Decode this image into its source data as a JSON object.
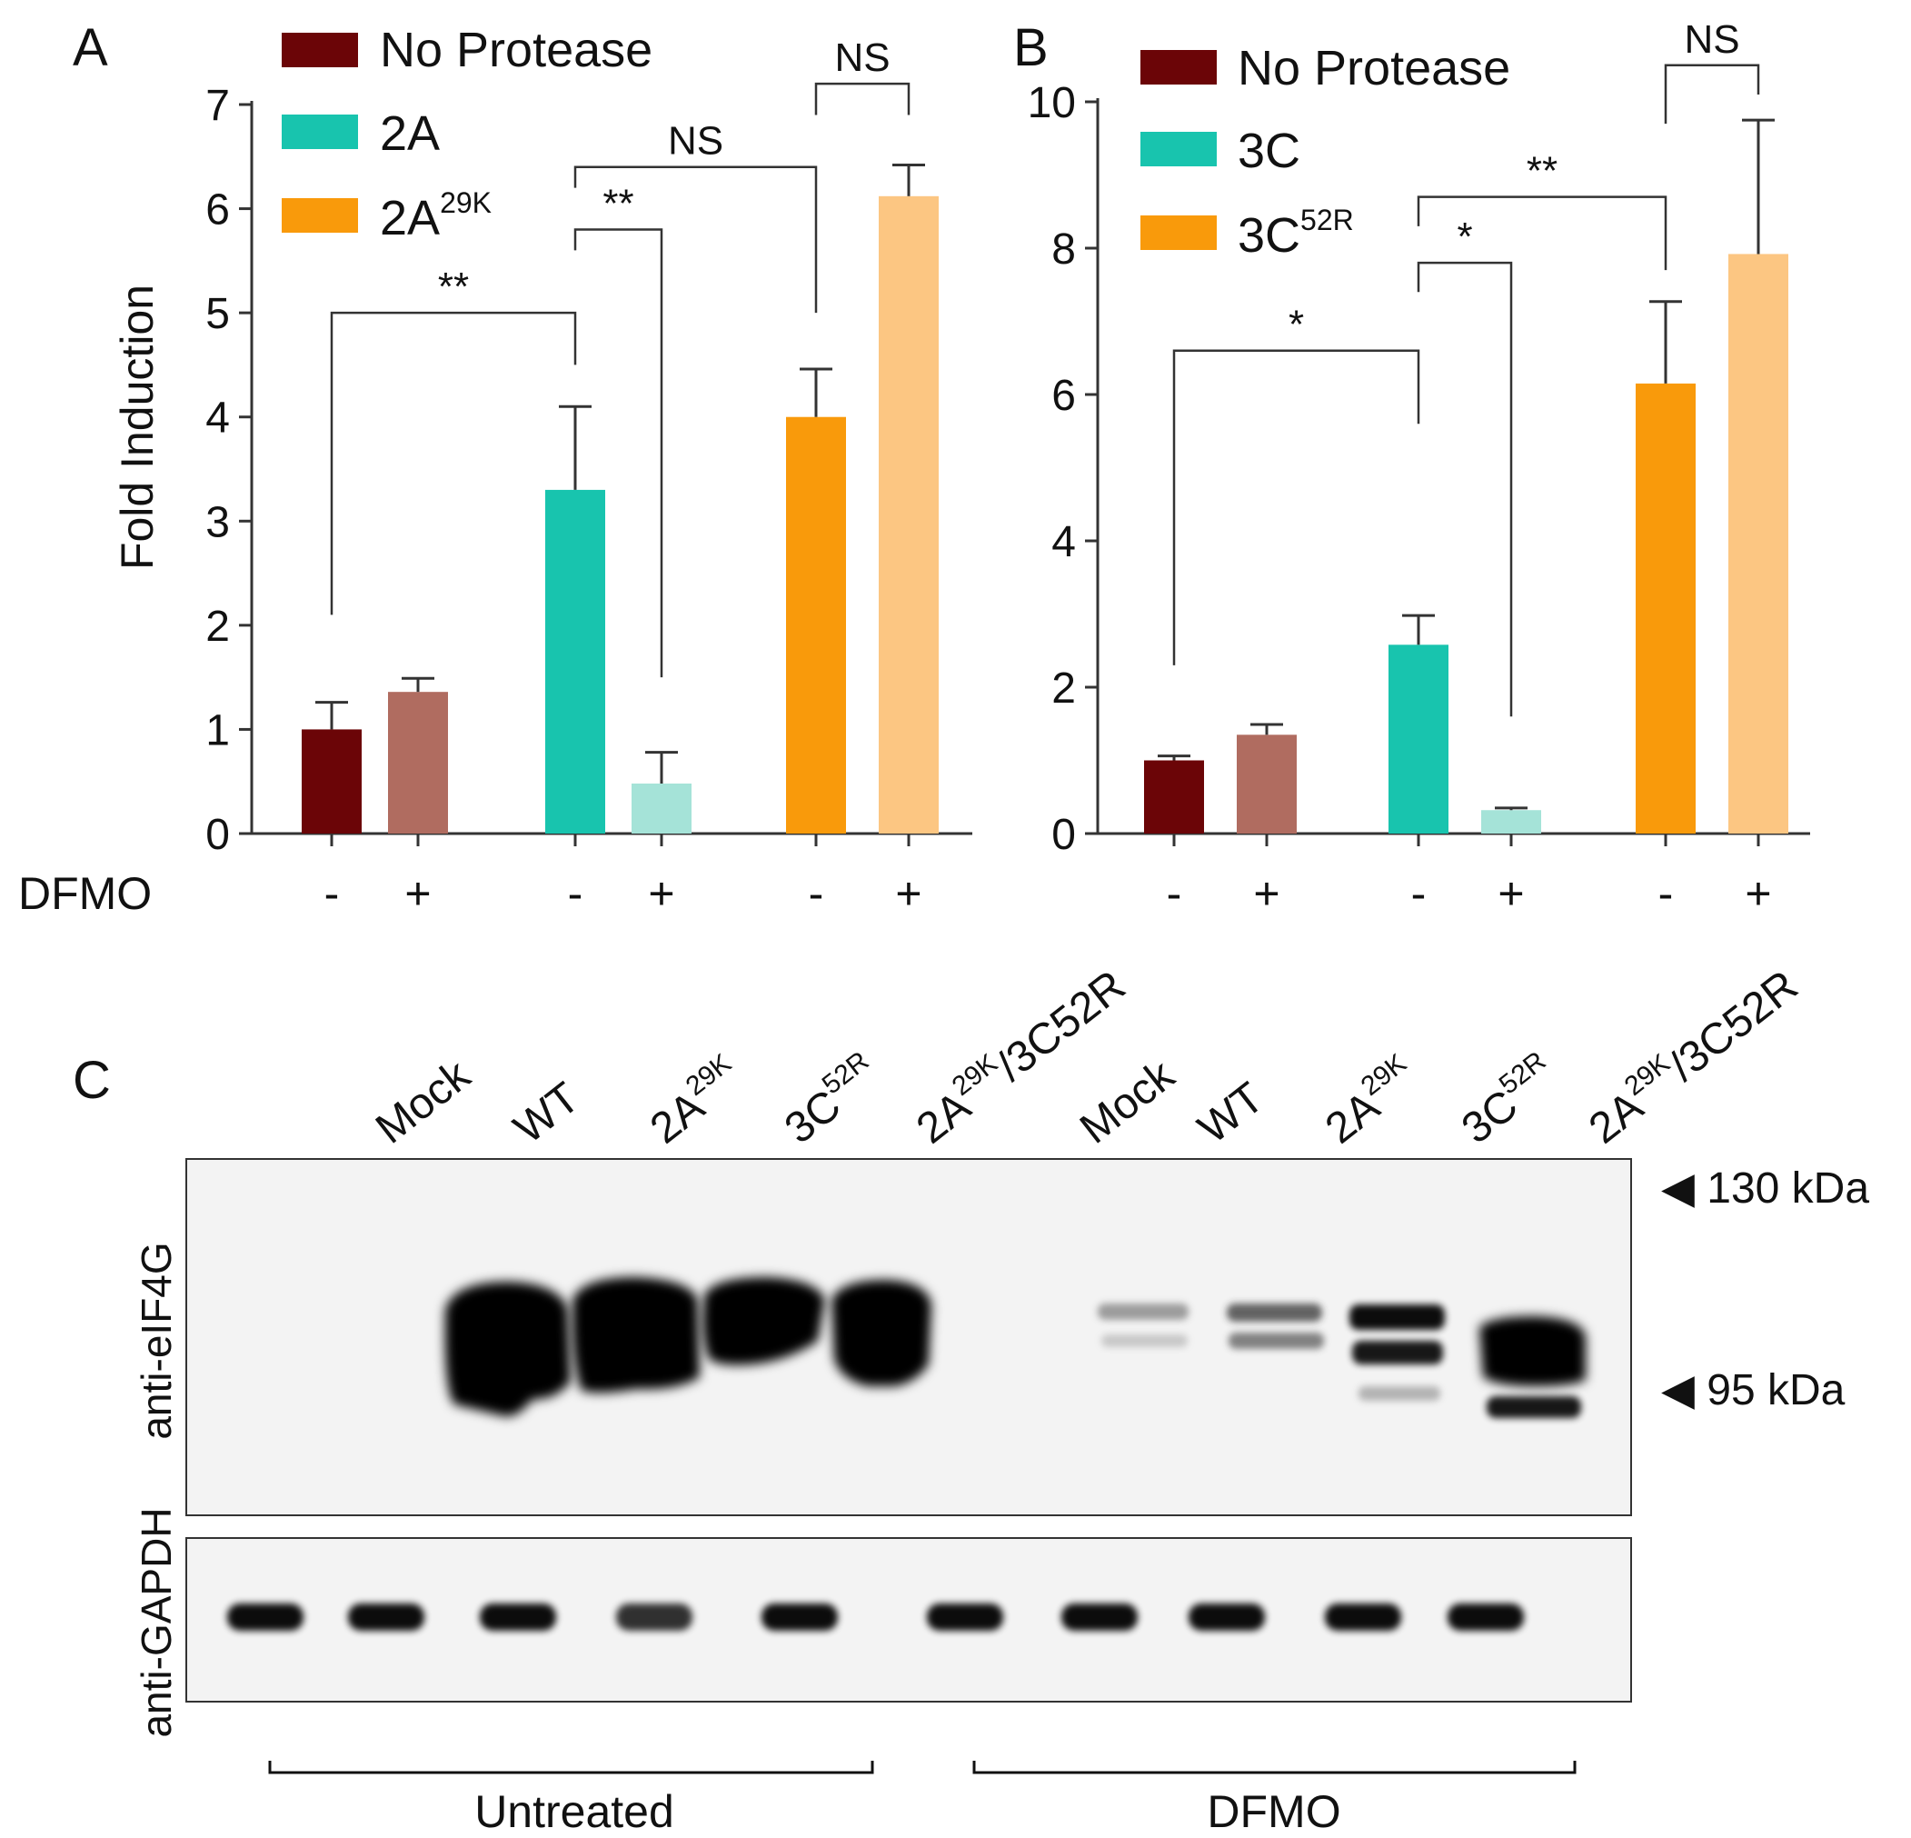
{
  "chart_data": [
    {
      "id": "A",
      "type": "bar",
      "panel_label": "A",
      "ylabel": "Fold Induction",
      "ylim": [
        0,
        7
      ],
      "yticks": [
        "0",
        "1",
        "2",
        "3",
        "4",
        "5",
        "6",
        "7"
      ],
      "xlabel": "DFMO",
      "legend_position": "top-left",
      "legend": [
        {
          "label": "No Protease",
          "sup": "",
          "color": "#6b0507"
        },
        {
          "label": "2A",
          "sup": "",
          "color": "#18c4ae"
        },
        {
          "label": "2A",
          "sup": "29K",
          "color": "#f99a0b"
        }
      ],
      "bars": [
        {
          "group": "No Protease",
          "dfmo": "-",
          "value": 1.0,
          "error": 0.26,
          "color": "#6b0507"
        },
        {
          "group": "No Protease",
          "dfmo": "+",
          "value": 1.36,
          "error": 0.13,
          "color": "#b06c60"
        },
        {
          "group": "2A",
          "dfmo": "-",
          "value": 3.3,
          "error": 0.8,
          "color": "#18c4ae"
        },
        {
          "group": "2A",
          "dfmo": "+",
          "value": 0.48,
          "error": 0.3,
          "color": "#a5e3d8"
        },
        {
          "group": "2A29K",
          "dfmo": "-",
          "value": 4.0,
          "error": 0.46,
          "color": "#f99a0b"
        },
        {
          "group": "2A29K",
          "dfmo": "+",
          "value": 6.12,
          "error": 0.3,
          "color": "#fcc682"
        }
      ],
      "significance": [
        {
          "from": 0,
          "to": 2,
          "label": "**",
          "y": 5.0,
          "drop_from": 2.1,
          "drop_to": 4.5
        },
        {
          "from": 2,
          "to": 3,
          "label": "**",
          "y": 5.8,
          "drop_from": 5.6,
          "drop_to": 1.5
        },
        {
          "from": 2,
          "to": 4,
          "label": "NS",
          "y": 6.4,
          "drop_from": 6.2,
          "drop_to": 5.0
        },
        {
          "from": 4,
          "to": 5,
          "label": "NS",
          "y": 7.2,
          "drop_from": 6.9,
          "drop_to": 6.9
        }
      ]
    },
    {
      "id": "B",
      "type": "bar",
      "panel_label": "B",
      "ylabel": "",
      "ylim": [
        0,
        10
      ],
      "yticks": [
        "0",
        "2",
        "4",
        "6",
        "8",
        "10"
      ],
      "xlabel": "",
      "legend_position": "top-left",
      "legend": [
        {
          "label": "No Protease",
          "sup": "",
          "color": "#6b0507"
        },
        {
          "label": "3C",
          "sup": "",
          "color": "#18c4ae"
        },
        {
          "label": "3C",
          "sup": "52R",
          "color": "#f99a0b"
        }
      ],
      "bars": [
        {
          "group": "No Protease",
          "dfmo": "-",
          "value": 1.0,
          "error": 0.06,
          "color": "#6b0507"
        },
        {
          "group": "No Protease",
          "dfmo": "+",
          "value": 1.35,
          "error": 0.14,
          "color": "#b06c60"
        },
        {
          "group": "3C",
          "dfmo": "-",
          "value": 2.58,
          "error": 0.4,
          "color": "#18c4ae"
        },
        {
          "group": "3C",
          "dfmo": "+",
          "value": 0.32,
          "error": 0.03,
          "color": "#a5e3d8"
        },
        {
          "group": "3C52R",
          "dfmo": "-",
          "value": 6.15,
          "error": 1.12,
          "color": "#f99a0b"
        },
        {
          "group": "3C52R",
          "dfmo": "+",
          "value": 7.92,
          "error": 1.83,
          "color": "#fcc682"
        }
      ],
      "significance": [
        {
          "from": 0,
          "to": 2,
          "label": "*",
          "y": 6.6,
          "drop_from": 2.3,
          "drop_to": 5.6
        },
        {
          "from": 2,
          "to": 3,
          "label": "*",
          "y": 7.8,
          "drop_from": 7.4,
          "drop_to": 1.6
        },
        {
          "from": 2,
          "to": 4,
          "label": "**",
          "y": 8.7,
          "drop_from": 8.3,
          "drop_to": 7.7
        },
        {
          "from": 4,
          "to": 5,
          "label": "NS",
          "y": 10.5,
          "drop_from": 9.7,
          "drop_to": 10.1
        }
      ]
    }
  ],
  "blot": {
    "panel_label": "C",
    "lanes": [
      {
        "label": "Mock",
        "sup": "",
        "suffix": ""
      },
      {
        "label": "WT",
        "sup": "",
        "suffix": ""
      },
      {
        "label": "2A",
        "sup": "29K",
        "suffix": ""
      },
      {
        "label": "3C",
        "sup": "52R",
        "suffix": ""
      },
      {
        "label": "2A",
        "sup": "29K",
        "suffix": "/3C52R"
      },
      {
        "label": "Mock",
        "sup": "",
        "suffix": ""
      },
      {
        "label": "WT",
        "sup": "",
        "suffix": ""
      },
      {
        "label": "2A",
        "sup": "29K",
        "suffix": ""
      },
      {
        "label": "3C",
        "sup": "52R",
        "suffix": ""
      },
      {
        "label": "2A",
        "sup": "29K",
        "suffix": "/3C52R"
      }
    ],
    "antibody_top": "anti-eIF4G",
    "antibody_bottom": "anti-GAPDH",
    "markers": [
      "◀ 130 kDa",
      "◀ 95 kDa"
    ],
    "groups": [
      "Untreated",
      "DFMO"
    ]
  }
}
